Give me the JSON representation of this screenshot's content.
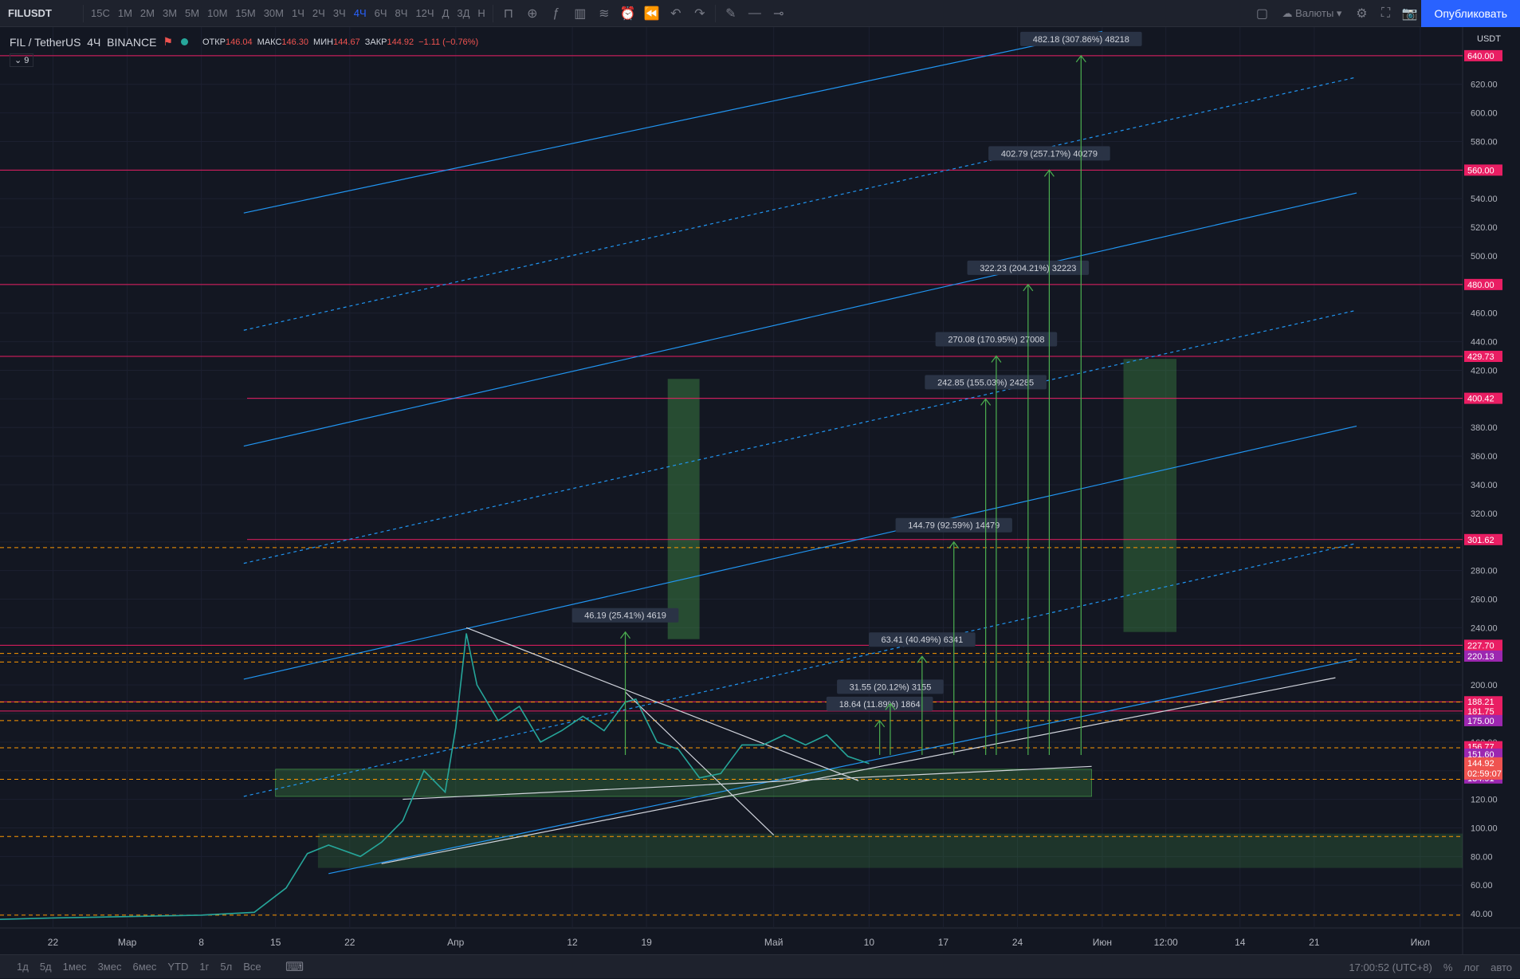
{
  "toolbar": {
    "symbol": "FILUSDT",
    "intervals": [
      "15С",
      "1М",
      "2М",
      "3М",
      "5М",
      "10М",
      "15М",
      "30М",
      "1Ч",
      "2Ч",
      "3Ч",
      "4Ч",
      "6Ч",
      "8Ч",
      "12Ч",
      "Д",
      "3Д",
      "Н"
    ],
    "active_interval": "4Ч",
    "currencies_label": "Валюты",
    "publish_label": "Опубликовать"
  },
  "legend": {
    "pair": "FIL / TetherUS",
    "interval": "4Ч",
    "exchange": "BINANCE",
    "open_label": "ОТКР",
    "open": "146.04",
    "high_label": "МАКС",
    "high": "146.30",
    "low_label": "МИН",
    "low": "144.67",
    "close_label": "ЗАКР",
    "close": "144.92",
    "change": "−1.11 (−0.76%)",
    "indicator_count": "9"
  },
  "chart_data": {
    "type": "candlestick",
    "title": "FIL / TetherUS · 4Ч · BINANCE",
    "currency": "USDT",
    "ylim": [
      30,
      660
    ],
    "xlim": [
      "2021-02-17",
      "2021-07-05"
    ],
    "y_ticks": [
      40,
      60,
      80,
      100,
      120,
      140,
      160,
      180,
      200,
      220,
      240,
      260,
      280,
      300,
      320,
      340,
      360,
      380,
      400,
      420,
      440,
      460,
      480,
      500,
      520,
      540,
      560,
      580,
      600,
      620,
      640
    ],
    "x_ticks": [
      {
        "date": "2021-02-22",
        "label": "22"
      },
      {
        "date": "2021-03-01",
        "label": "Мар"
      },
      {
        "date": "2021-03-08",
        "label": "8"
      },
      {
        "date": "2021-03-15",
        "label": "15"
      },
      {
        "date": "2021-03-22",
        "label": "22"
      },
      {
        "date": "2021-04-01",
        "label": "Апр"
      },
      {
        "date": "2021-04-12",
        "label": "12"
      },
      {
        "date": "2021-04-19",
        "label": "19"
      },
      {
        "date": "2021-05-01",
        "label": "Май"
      },
      {
        "date": "2021-05-10",
        "label": "10"
      },
      {
        "date": "2021-05-17",
        "label": "17"
      },
      {
        "date": "2021-05-24",
        "label": "24"
      },
      {
        "date": "2021-06-01",
        "label": "Июн"
      },
      {
        "date": "2021-06-07",
        "label": "12:00"
      },
      {
        "date": "2021-06-14",
        "label": "14"
      },
      {
        "date": "2021-06-21",
        "label": "21"
      },
      {
        "date": "2021-07-01",
        "label": "Июл"
      }
    ],
    "price_path": [
      [
        "2021-02-17",
        36
      ],
      [
        "2021-02-22",
        37
      ],
      [
        "2021-03-01",
        38
      ],
      [
        "2021-03-08",
        39
      ],
      [
        "2021-03-13",
        41
      ],
      [
        "2021-03-16",
        58
      ],
      [
        "2021-03-18",
        82
      ],
      [
        "2021-03-20",
        88
      ],
      [
        "2021-03-23",
        80
      ],
      [
        "2021-03-25",
        90
      ],
      [
        "2021-03-27",
        105
      ],
      [
        "2021-03-29",
        140
      ],
      [
        "2021-03-31",
        125
      ],
      [
        "2021-04-01",
        170
      ],
      [
        "2021-04-02",
        236
      ],
      [
        "2021-04-03",
        200
      ],
      [
        "2021-04-05",
        175
      ],
      [
        "2021-04-07",
        185
      ],
      [
        "2021-04-09",
        160
      ],
      [
        "2021-04-11",
        168
      ],
      [
        "2021-04-13",
        178
      ],
      [
        "2021-04-15",
        168
      ],
      [
        "2021-04-17",
        188
      ],
      [
        "2021-04-18",
        190
      ],
      [
        "2021-04-20",
        160
      ],
      [
        "2021-04-22",
        155
      ],
      [
        "2021-04-24",
        135
      ],
      [
        "2021-04-26",
        138
      ],
      [
        "2021-04-28",
        158
      ],
      [
        "2021-04-30",
        158
      ],
      [
        "2021-05-02",
        165
      ],
      [
        "2021-05-04",
        158
      ],
      [
        "2021-05-06",
        165
      ],
      [
        "2021-05-08",
        150
      ],
      [
        "2021-05-10",
        145
      ]
    ],
    "last_price": "144.92",
    "countdown": "02:59:07",
    "price_labels": [
      {
        "value": 640,
        "text": "640.00",
        "color": "#e91e63"
      },
      {
        "value": 560,
        "text": "560.00",
        "color": "#e91e63"
      },
      {
        "value": 480,
        "text": "480.00",
        "color": "#e91e63"
      },
      {
        "value": 429.73,
        "text": "429.73",
        "color": "#e91e63"
      },
      {
        "value": 400.42,
        "text": "400.42",
        "color": "#e91e63"
      },
      {
        "value": 301.62,
        "text": "301.62",
        "color": "#e91e63"
      },
      {
        "value": 227.7,
        "text": "227.70",
        "color": "#e91e63"
      },
      {
        "value": 220.13,
        "text": "220.13",
        "color": "#9c27b0"
      },
      {
        "value": 188.21,
        "text": "188.21",
        "color": "#e91e63"
      },
      {
        "value": 181.75,
        "text": "181.75",
        "color": "#e91e63"
      },
      {
        "value": 175.0,
        "text": "175.00",
        "color": "#9c27b0"
      },
      {
        "value": 156.77,
        "text": "156.77",
        "color": "#e91e63"
      },
      {
        "value": 151.6,
        "text": "151.60",
        "color": "#9c27b0"
      },
      {
        "value": 134.91,
        "text": "134.91",
        "color": "#9c27b0"
      }
    ],
    "levels": [
      640,
      560,
      480,
      429.73,
      400.42,
      301.62,
      227.7,
      188.21,
      181.75
    ],
    "dashed_levels": [
      296,
      222,
      216,
      188,
      175,
      156,
      134,
      94,
      39
    ],
    "measurements": [
      {
        "x": "2021-04-17",
        "value": 237,
        "text": "46.19 (25.41%) 4619"
      },
      {
        "x": "2021-05-11",
        "value": 175,
        "text": "18.64 (11.89%) 1864"
      },
      {
        "x": "2021-05-12",
        "value": 187,
        "text": "31.55 (20.12%) 3155"
      },
      {
        "x": "2021-05-15",
        "value": 220,
        "text": "63.41 (40.49%) 6341"
      },
      {
        "x": "2021-05-18",
        "value": 300,
        "text": "144.79 (92.59%) 14479"
      },
      {
        "x": "2021-05-21",
        "value": 400,
        "text": "242.85 (155.03%) 24285"
      },
      {
        "x": "2021-05-22",
        "value": 430,
        "text": "270.08 (170.95%) 27008"
      },
      {
        "x": "2021-05-25",
        "value": 480,
        "text": "322.23 (204.21%) 32223"
      },
      {
        "x": "2021-05-27",
        "value": 560,
        "text": "402.79 (257.17%) 40279"
      },
      {
        "x": "2021-05-30",
        "value": 640,
        "text": "482.18 (307.86%) 48218"
      }
    ]
  },
  "bottombar": {
    "ranges": [
      "1д",
      "5д",
      "1мес",
      "3мес",
      "6мес",
      "YTD",
      "1г",
      "5л",
      "Все"
    ],
    "clock": "17:00:52 (UTC+8)",
    "percent": "%",
    "log": "лог",
    "auto": "авто"
  }
}
